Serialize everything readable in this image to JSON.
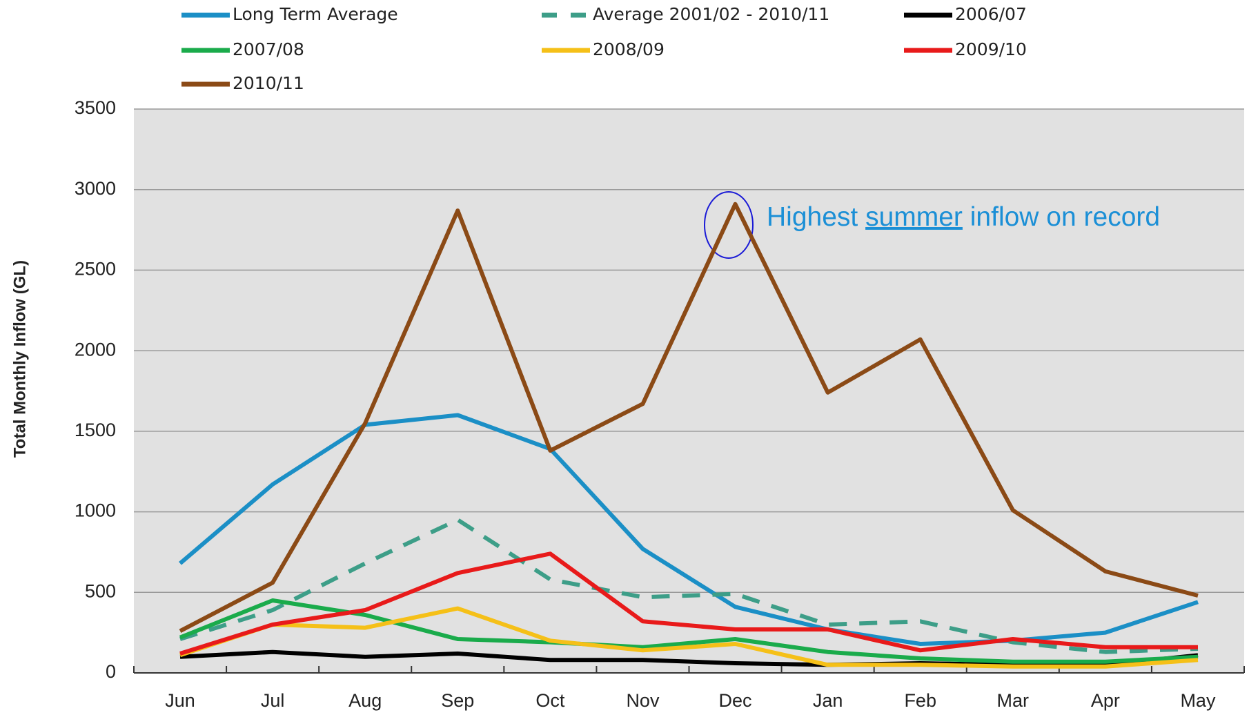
{
  "chart_data": {
    "type": "line",
    "y_label": "Total Monthly Inflow (GL)",
    "categories": [
      "Jun",
      "Jul",
      "Aug",
      "Sep",
      "Oct",
      "Nov",
      "Dec",
      "Jan",
      "Feb",
      "Mar",
      "Apr",
      "May"
    ],
    "series": [
      {
        "name": "Long Term Average",
        "color": "#1b8fc6",
        "values": [
          680,
          1170,
          1540,
          1600,
          1390,
          770,
          410,
          270,
          180,
          200,
          250,
          440
        ]
      },
      {
        "name": "Average 2001/02 - 2010/11",
        "color": "#3d9e88",
        "dashed": true,
        "values": [
          210,
          390,
          680,
          950,
          580,
          470,
          490,
          300,
          320,
          190,
          130,
          150
        ]
      },
      {
        "name": "2006/07",
        "color": "#000000",
        "values": [
          100,
          130,
          100,
          120,
          80,
          80,
          60,
          50,
          60,
          50,
          50,
          110
        ]
      },
      {
        "name": "2007/08",
        "color": "#1aab4b",
        "values": [
          220,
          450,
          360,
          210,
          190,
          160,
          210,
          130,
          90,
          70,
          70,
          100
        ]
      },
      {
        "name": "2008/09",
        "color": "#f5c018",
        "values": [
          110,
          300,
          280,
          400,
          200,
          140,
          180,
          50,
          50,
          40,
          40,
          80
        ]
      },
      {
        "name": "2009/10",
        "color": "#e81a1a",
        "values": [
          120,
          300,
          390,
          620,
          740,
          320,
          270,
          270,
          140,
          210,
          160,
          160
        ]
      },
      {
        "name": "2010/11",
        "color": "#8b4a16",
        "values": [
          260,
          560,
          1550,
          2870,
          1380,
          1670,
          2910,
          1740,
          2070,
          1010,
          630,
          480
        ]
      }
    ],
    "ylim": [
      0,
      3500
    ],
    "yticks": [
      0,
      500,
      1000,
      1500,
      2000,
      2500,
      3000,
      3500
    ],
    "grid": true,
    "annotation": [
      "Highest ",
      "summer",
      " inflow on record"
    ],
    "annotation_color": "#1b8fd6"
  }
}
